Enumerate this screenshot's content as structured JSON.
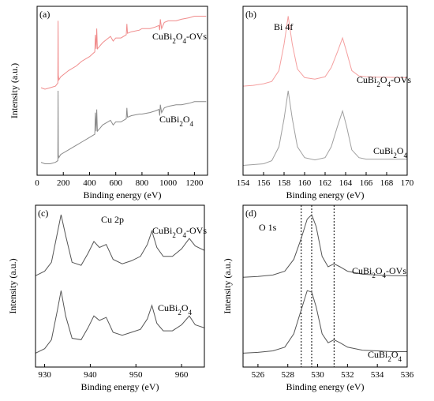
{
  "chart_data": [
    {
      "type": "line",
      "panel_label": "(a)",
      "xlabel": "Binding energy (eV)",
      "ylabel": "Intensity (a.u.)",
      "xlim": [
        0,
        1300
      ],
      "xticks": [
        "0",
        "200",
        "400",
        "600",
        "800",
        "1000",
        "1200"
      ],
      "show_yticks": false,
      "series": [
        {
          "name": "CuBi2O4-OVs",
          "label_main": "CuBi",
          "label_sub1": "2",
          "label_mid": "O",
          "label_sub2": "4",
          "label_tail": "-OVs",
          "color": "#f08c8c",
          "baseline": 0.55,
          "x": [
            30,
            60,
            100,
            140,
            158,
            160,
            162,
            166,
            180,
            240,
            300,
            340,
            400,
            440,
            445,
            450,
            455,
            460,
            470,
            480,
            500,
            560,
            580,
            600,
            640,
            680,
            685,
            690,
            720,
            780,
            800,
            860,
            900,
            930,
            935,
            940,
            950,
            970,
            1000,
            1060,
            1100,
            1160,
            1200,
            1290
          ],
          "y": [
            0.52,
            0.51,
            0.52,
            0.53,
            0.55,
            0.95,
            0.6,
            0.57,
            0.59,
            0.63,
            0.66,
            0.69,
            0.72,
            0.75,
            0.86,
            0.77,
            0.9,
            0.77,
            0.78,
            0.79,
            0.81,
            0.85,
            0.82,
            0.84,
            0.84,
            0.86,
            0.93,
            0.87,
            0.88,
            0.89,
            0.9,
            0.9,
            0.91,
            0.92,
            0.89,
            0.96,
            0.9,
            0.94,
            0.95,
            0.95,
            0.96,
            0.97,
            0.98,
            0.98
          ]
        },
        {
          "name": "CuBi2O4",
          "label_main": "CuBi",
          "label_sub1": "2",
          "label_mid": "O",
          "label_sub2": "4",
          "label_tail": "",
          "color": "#8a8a8a",
          "x": [
            30,
            60,
            100,
            140,
            158,
            160,
            162,
            166,
            180,
            240,
            300,
            340,
            400,
            440,
            445,
            450,
            455,
            460,
            470,
            480,
            500,
            560,
            580,
            600,
            640,
            680,
            685,
            690,
            720,
            780,
            800,
            860,
            900,
            930,
            935,
            940,
            950,
            970,
            1000,
            1060,
            1100,
            1160,
            1200,
            1290
          ],
          "y": [
            0.04,
            0.03,
            0.03,
            0.04,
            0.05,
            0.5,
            0.09,
            0.07,
            0.09,
            0.12,
            0.15,
            0.17,
            0.2,
            0.22,
            0.36,
            0.24,
            0.38,
            0.24,
            0.25,
            0.26,
            0.28,
            0.31,
            0.28,
            0.3,
            0.3,
            0.32,
            0.39,
            0.33,
            0.34,
            0.35,
            0.35,
            0.36,
            0.37,
            0.38,
            0.34,
            0.41,
            0.36,
            0.39,
            0.4,
            0.41,
            0.41,
            0.42,
            0.43,
            0.43
          ]
        }
      ]
    },
    {
      "type": "line",
      "panel_label": "(b)",
      "annotation": "Bi 4f",
      "xlabel": "Binding energy (eV)",
      "ylabel": "",
      "xlim": [
        154,
        170
      ],
      "xticks": [
        "154",
        "156",
        "158",
        "160",
        "162",
        "164",
        "166",
        "168",
        "170"
      ],
      "show_yticks": false,
      "series": [
        {
          "name": "CuBi2O4-OVs",
          "label_main": "CuBi",
          "label_sub1": "2",
          "label_mid": "O",
          "label_sub2": "4",
          "label_tail": "-OVs",
          "color": "#f5a0a0",
          "x": [
            154,
            155,
            156,
            156.8,
            157.5,
            158,
            158.4,
            158.8,
            159.3,
            160,
            161,
            162,
            162.6,
            163.2,
            163.7,
            164.1,
            164.6,
            165.3,
            166,
            167,
            168,
            170
          ],
          "y": [
            0.53,
            0.535,
            0.545,
            0.56,
            0.63,
            0.8,
            0.98,
            0.8,
            0.64,
            0.585,
            0.575,
            0.59,
            0.65,
            0.75,
            0.84,
            0.75,
            0.63,
            0.595,
            0.59,
            0.588,
            0.587,
            0.585
          ]
        },
        {
          "name": "CuBi2O4",
          "label_main": "CuBi",
          "label_sub1": "2",
          "label_mid": "O",
          "label_sub2": "4",
          "label_tail": "",
          "color": "#a0a0a0",
          "x": [
            154,
            155,
            156,
            156.8,
            157.5,
            158,
            158.4,
            158.8,
            159.3,
            160,
            161,
            162,
            162.6,
            163.2,
            163.7,
            164.1,
            164.6,
            165.3,
            166,
            167,
            168,
            170
          ],
          "y": [
            0.02,
            0.025,
            0.03,
            0.05,
            0.14,
            0.32,
            0.5,
            0.32,
            0.14,
            0.07,
            0.055,
            0.07,
            0.14,
            0.27,
            0.37,
            0.27,
            0.12,
            0.07,
            0.06,
            0.06,
            0.06,
            0.06
          ]
        }
      ]
    },
    {
      "type": "line",
      "panel_label": "(c)",
      "annotation": "Cu 2p",
      "xlabel": "Binding energy (eV)",
      "ylabel": "Intensity (a.u.)",
      "xlim": [
        928,
        965
      ],
      "xticks": [
        "930",
        "940",
        "950",
        "960"
      ],
      "show_yticks": false,
      "series": [
        {
          "name": "CuBi2O4-OVs",
          "label_main": "CuBi",
          "label_sub1": "2",
          "label_mid": "O",
          "label_sub2": "4",
          "label_tail": "-OVs",
          "color": "#555555",
          "x": [
            928,
            930,
            931.5,
            932.8,
            933.6,
            934.6,
            936,
            938,
            939.5,
            940.8,
            942,
            943.5,
            945,
            947,
            949,
            951,
            952.5,
            953.5,
            954.6,
            956,
            958,
            960,
            961.7,
            963,
            965
          ],
          "y": [
            0.57,
            0.6,
            0.66,
            0.86,
            0.98,
            0.84,
            0.66,
            0.64,
            0.72,
            0.8,
            0.76,
            0.78,
            0.68,
            0.65,
            0.67,
            0.7,
            0.78,
            0.87,
            0.76,
            0.7,
            0.7,
            0.75,
            0.82,
            0.77,
            0.74
          ]
        },
        {
          "name": "CuBi2O4",
          "label_main": "CuBi",
          "label_sub1": "2",
          "label_mid": "O",
          "label_sub2": "4",
          "label_tail": "",
          "color": "#555555",
          "x": [
            928,
            930,
            931.5,
            932.8,
            933.6,
            934.6,
            936,
            938,
            939.5,
            940.8,
            942,
            943.5,
            945,
            947,
            949,
            951,
            952.5,
            953.5,
            954.6,
            956,
            958,
            960,
            961.7,
            963,
            965
          ],
          "y": [
            0.05,
            0.08,
            0.14,
            0.34,
            0.47,
            0.3,
            0.15,
            0.14,
            0.22,
            0.3,
            0.27,
            0.29,
            0.19,
            0.17,
            0.19,
            0.21,
            0.28,
            0.37,
            0.25,
            0.2,
            0.2,
            0.24,
            0.3,
            0.24,
            0.22
          ]
        }
      ]
    },
    {
      "type": "line",
      "panel_label": "(d)",
      "annotation": "O 1s",
      "xlabel": "Binding energy (eV)",
      "ylabel": "Intensity (a.u.)",
      "xlim": [
        525,
        536
      ],
      "xticks": [
        "526",
        "528",
        "530",
        "532",
        "534",
        "536"
      ],
      "show_yticks": false,
      "dashed_lines_x": [
        528.9,
        529.6,
        531.1
      ],
      "series": [
        {
          "name": "CuBi2O4-OVs",
          "label_main": "CuBi",
          "label_sub1": "2",
          "label_mid": "O",
          "label_sub2": "4",
          "label_tail": "-OVs",
          "color": "#555555",
          "x": [
            525,
            526,
            527,
            527.8,
            528.4,
            528.9,
            529.3,
            529.6,
            529.9,
            530.3,
            530.7,
            531.1,
            531.5,
            532,
            533,
            534,
            535,
            536
          ],
          "y": [
            0.56,
            0.565,
            0.575,
            0.6,
            0.68,
            0.82,
            0.95,
            0.98,
            0.9,
            0.7,
            0.63,
            0.65,
            0.63,
            0.6,
            0.58,
            0.575,
            0.57,
            0.57
          ]
        },
        {
          "name": "CuBi2O4",
          "label_main": "CuBi",
          "label_sub1": "2",
          "label_mid": "O",
          "label_sub2": "4",
          "label_tail": "",
          "color": "#555555",
          "x": [
            525,
            526,
            527,
            527.8,
            528.4,
            528.9,
            529.3,
            529.6,
            529.9,
            530.3,
            530.7,
            531.1,
            531.5,
            532,
            533,
            534,
            535,
            536
          ],
          "y": [
            0.05,
            0.055,
            0.065,
            0.09,
            0.18,
            0.34,
            0.47,
            0.46,
            0.36,
            0.18,
            0.12,
            0.14,
            0.12,
            0.09,
            0.07,
            0.065,
            0.06,
            0.06
          ]
        }
      ]
    }
  ]
}
